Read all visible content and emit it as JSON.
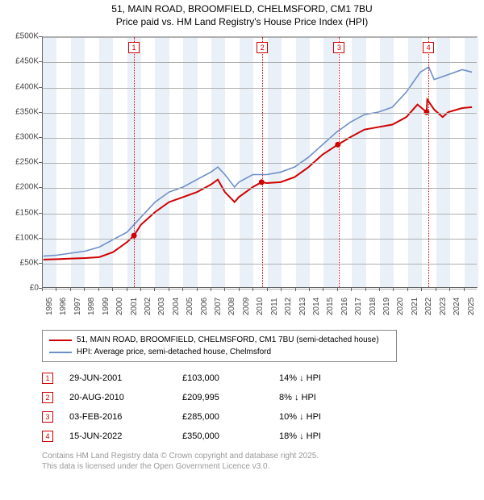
{
  "title_line1": "51, MAIN ROAD, BROOMFIELD, CHELMSFORD, CM1 7BU",
  "title_line2": "Price paid vs. HM Land Registry's House Price Index (HPI)",
  "chart": {
    "type": "line",
    "background_color": "#ffffff",
    "band_color": "#eaf0f8",
    "grid_color": "#b0b0b0",
    "axis_color": "#666666",
    "x_min": 1995,
    "x_max": 2026,
    "y_min": 0,
    "y_max": 500000,
    "y_ticks": [
      0,
      50000,
      100000,
      150000,
      200000,
      250000,
      300000,
      350000,
      400000,
      450000,
      500000
    ],
    "y_tick_labels": [
      "£0",
      "£50K",
      "£100K",
      "£150K",
      "£200K",
      "£250K",
      "£300K",
      "£350K",
      "£400K",
      "£450K",
      "£500K"
    ],
    "x_ticks": [
      1995,
      1996,
      1997,
      1998,
      1999,
      2000,
      2001,
      2002,
      2003,
      2004,
      2005,
      2006,
      2007,
      2008,
      2009,
      2010,
      2011,
      2012,
      2013,
      2014,
      2015,
      2016,
      2017,
      2018,
      2019,
      2020,
      2021,
      2022,
      2023,
      2024,
      2025
    ],
    "bands": [
      [
        1995,
        1996
      ],
      [
        1997,
        1998
      ],
      [
        1999,
        2000
      ],
      [
        2001,
        2002
      ],
      [
        2003,
        2004
      ],
      [
        2005,
        2006
      ],
      [
        2007,
        2008
      ],
      [
        2009,
        2010
      ],
      [
        2011,
        2012
      ],
      [
        2013,
        2014
      ],
      [
        2015,
        2016
      ],
      [
        2017,
        2018
      ],
      [
        2019,
        2020
      ],
      [
        2021,
        2022
      ],
      [
        2023,
        2024
      ],
      [
        2025,
        2026
      ]
    ],
    "markers": [
      {
        "n": "1",
        "x": 2001.49
      },
      {
        "n": "2",
        "x": 2010.63
      },
      {
        "n": "3",
        "x": 2016.09
      },
      {
        "n": "4",
        "x": 2022.45
      }
    ],
    "series": [
      {
        "name": "price_paid",
        "color": "#d00000",
        "width": 2,
        "points": [
          [
            1995,
            55000
          ],
          [
            1996,
            56000
          ],
          [
            1997,
            57000
          ],
          [
            1998,
            58000
          ],
          [
            1999,
            60000
          ],
          [
            2000,
            70000
          ],
          [
            2001,
            90000
          ],
          [
            2001.49,
            103000
          ],
          [
            2002,
            125000
          ],
          [
            2003,
            150000
          ],
          [
            2004,
            170000
          ],
          [
            2005,
            180000
          ],
          [
            2006,
            190000
          ],
          [
            2007,
            205000
          ],
          [
            2007.5,
            215000
          ],
          [
            2008,
            190000
          ],
          [
            2008.7,
            170000
          ],
          [
            2009,
            180000
          ],
          [
            2010,
            200000
          ],
          [
            2010.63,
            209995
          ],
          [
            2011,
            208000
          ],
          [
            2012,
            210000
          ],
          [
            2013,
            220000
          ],
          [
            2014,
            240000
          ],
          [
            2015,
            265000
          ],
          [
            2016.09,
            285000
          ],
          [
            2017,
            300000
          ],
          [
            2018,
            315000
          ],
          [
            2019,
            320000
          ],
          [
            2020,
            325000
          ],
          [
            2021,
            340000
          ],
          [
            2021.8,
            365000
          ],
          [
            2022.45,
            350000
          ],
          [
            2022.5,
            375000
          ],
          [
            2023,
            355000
          ],
          [
            2023.6,
            340000
          ],
          [
            2024,
            350000
          ],
          [
            2025,
            358000
          ],
          [
            2025.7,
            360000
          ]
        ],
        "sale_points": [
          [
            2001.49,
            103000
          ],
          [
            2010.63,
            209995
          ],
          [
            2016.09,
            285000
          ],
          [
            2022.45,
            350000
          ]
        ]
      },
      {
        "name": "hpi",
        "color": "#6b8fc7",
        "width": 1.6,
        "points": [
          [
            1995,
            62000
          ],
          [
            1996,
            64000
          ],
          [
            1997,
            68000
          ],
          [
            1998,
            72000
          ],
          [
            1999,
            80000
          ],
          [
            2000,
            95000
          ],
          [
            2001,
            110000
          ],
          [
            2002,
            140000
          ],
          [
            2003,
            170000
          ],
          [
            2004,
            190000
          ],
          [
            2005,
            200000
          ],
          [
            2006,
            215000
          ],
          [
            2007,
            230000
          ],
          [
            2007.5,
            240000
          ],
          [
            2008,
            225000
          ],
          [
            2008.7,
            200000
          ],
          [
            2009,
            210000
          ],
          [
            2010,
            225000
          ],
          [
            2011,
            225000
          ],
          [
            2012,
            230000
          ],
          [
            2013,
            240000
          ],
          [
            2014,
            260000
          ],
          [
            2015,
            285000
          ],
          [
            2016,
            310000
          ],
          [
            2017,
            330000
          ],
          [
            2018,
            345000
          ],
          [
            2019,
            350000
          ],
          [
            2020,
            360000
          ],
          [
            2021,
            390000
          ],
          [
            2022,
            430000
          ],
          [
            2022.6,
            440000
          ],
          [
            2023,
            415000
          ],
          [
            2024,
            425000
          ],
          [
            2025,
            435000
          ],
          [
            2025.7,
            430000
          ]
        ]
      }
    ]
  },
  "legend": {
    "rows": [
      {
        "color": "#d00000",
        "label": "51, MAIN ROAD, BROOMFIELD, CHELMSFORD, CM1 7BU (semi-detached house)"
      },
      {
        "color": "#6b8fc7",
        "label": "HPI: Average price, semi-detached house, Chelmsford"
      }
    ]
  },
  "transactions": [
    {
      "n": "1",
      "date": "29-JUN-2001",
      "price": "£103,000",
      "diff": "14% ↓ HPI"
    },
    {
      "n": "2",
      "date": "20-AUG-2010",
      "price": "£209,995",
      "diff": "8% ↓ HPI"
    },
    {
      "n": "3",
      "date": "03-FEB-2016",
      "price": "£285,000",
      "diff": "10% ↓ HPI"
    },
    {
      "n": "4",
      "date": "15-JUN-2022",
      "price": "£350,000",
      "diff": "18% ↓ HPI"
    }
  ],
  "footnote_line1": "Contains HM Land Registry data © Crown copyright and database right 2025.",
  "footnote_line2": "This data is licensed under the Open Government Licence v3.0."
}
